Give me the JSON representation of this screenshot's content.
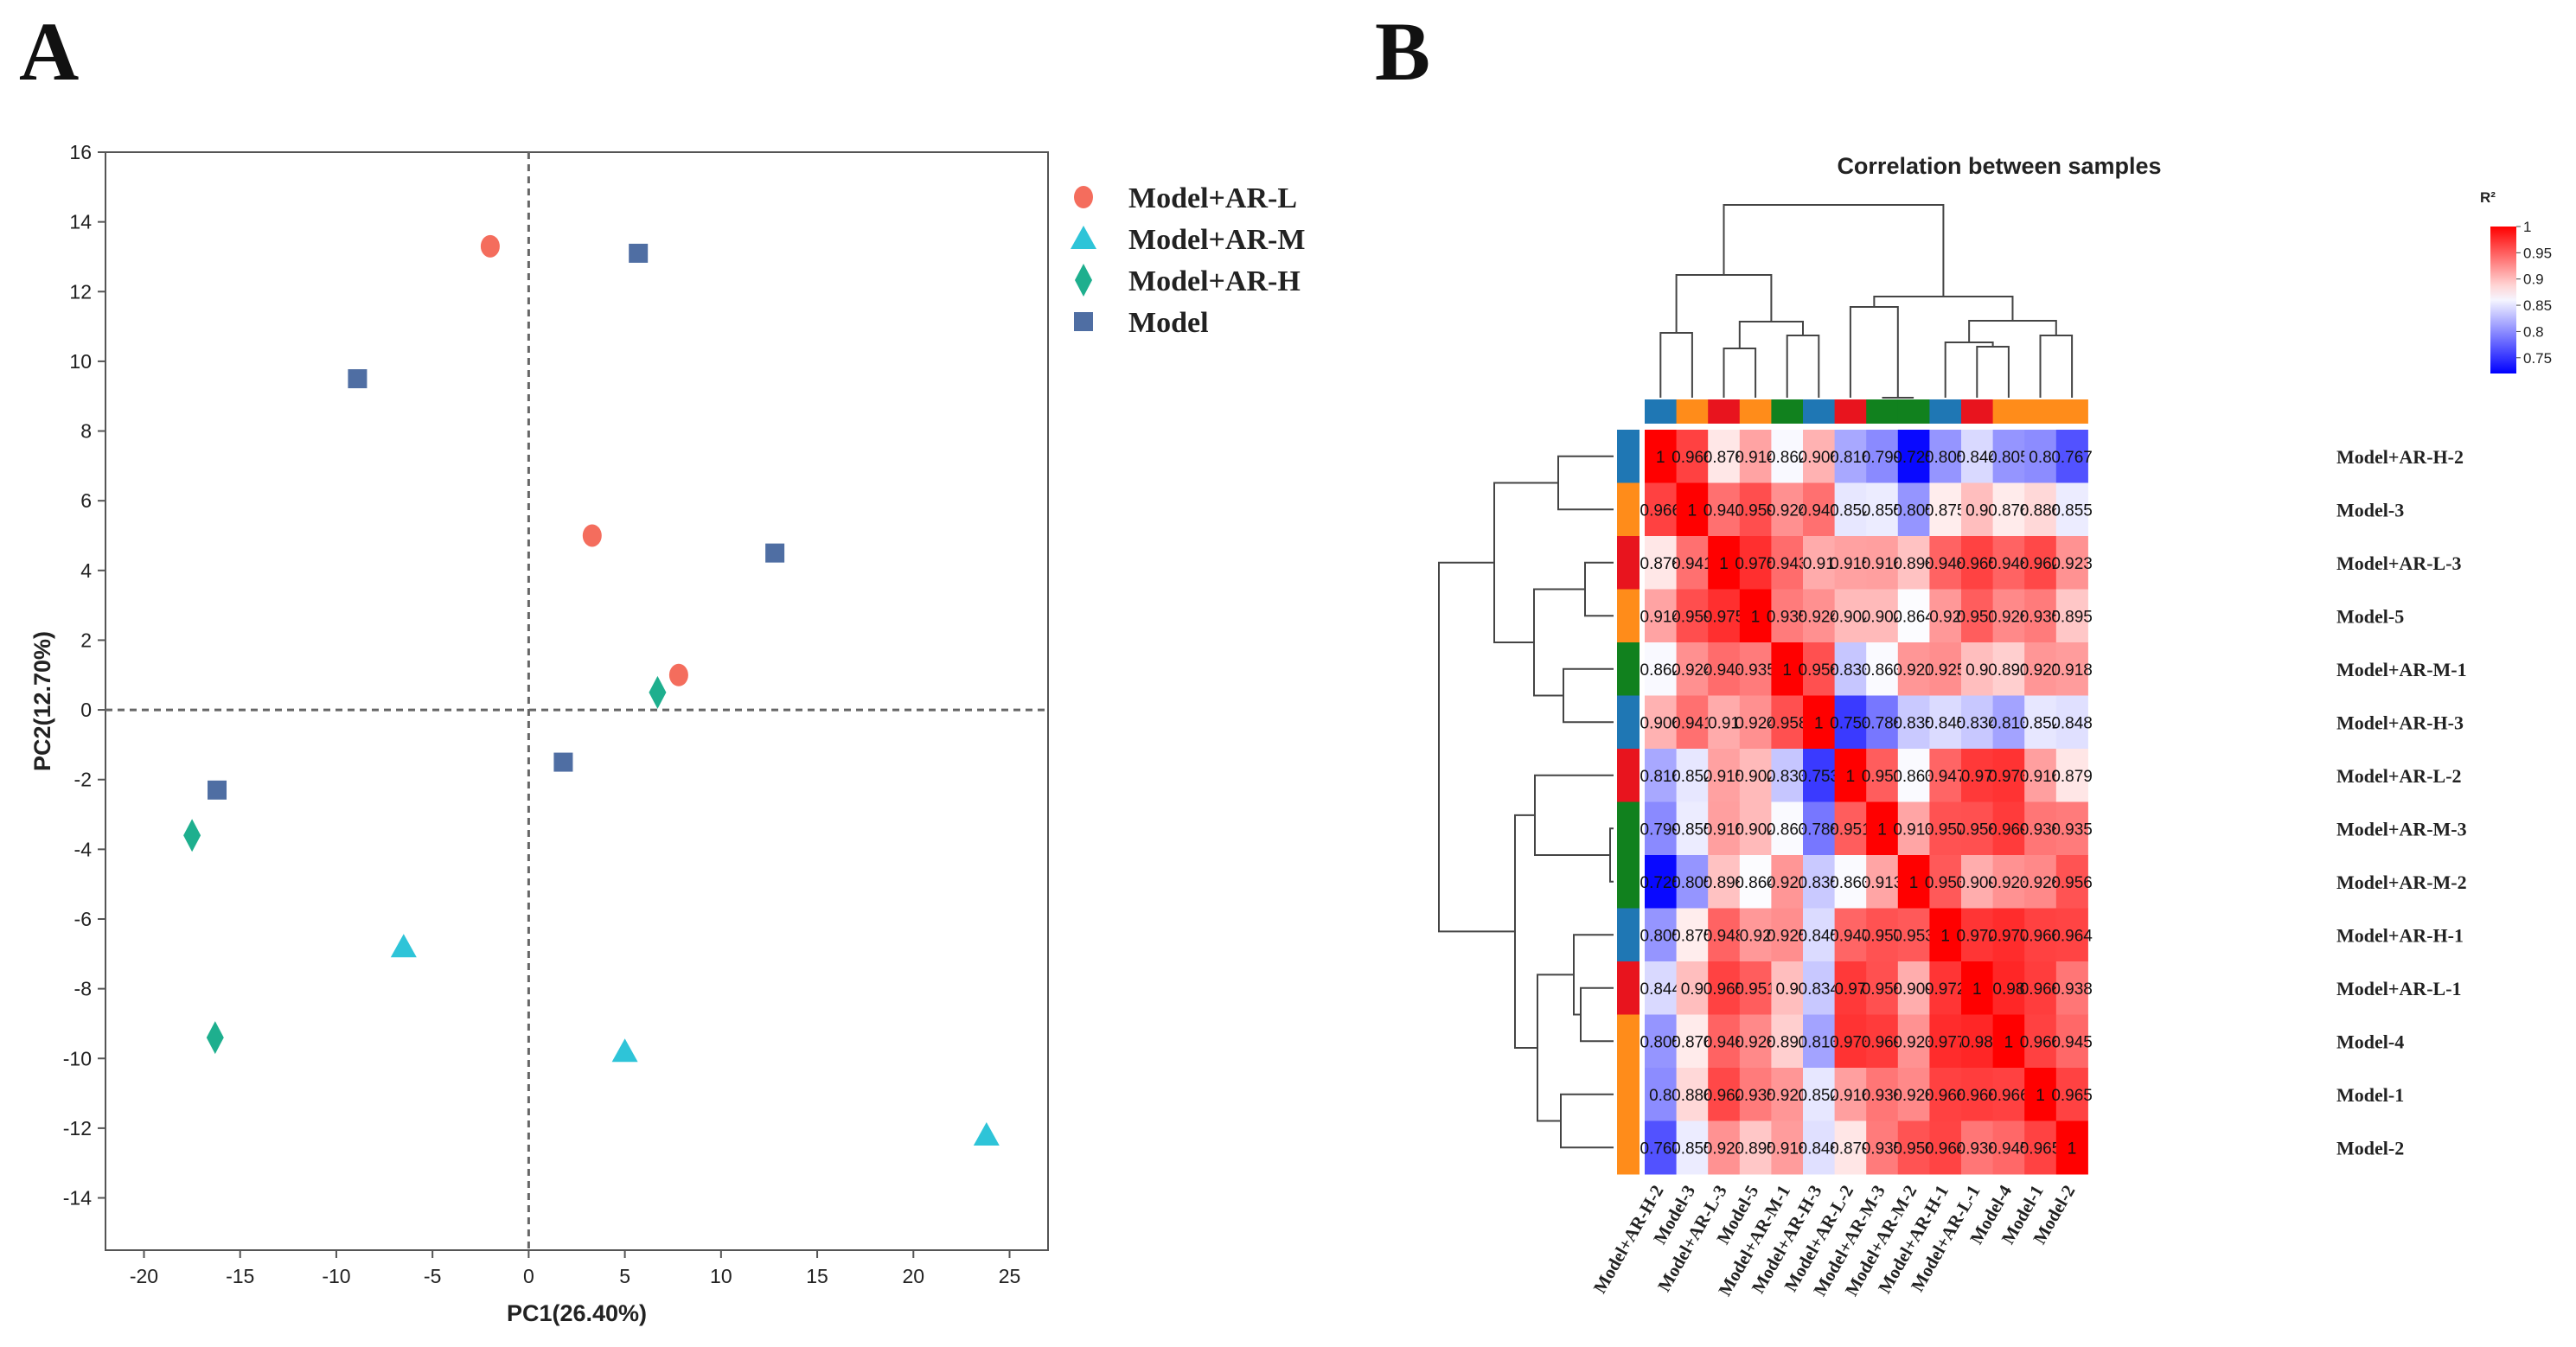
{
  "panels": {
    "a_label": "A",
    "b_label": "B"
  },
  "colors": {
    "Model+AR-L": "#f46d5d",
    "Model+AR-M": "#2ec4d8",
    "Model+AR-H": "#1eaf8e",
    "Model": "#4f6ea3",
    "group_bar": {
      "Model+AR-H": "#1f77b4",
      "Model": "#ff8c1a",
      "Model+AR-L": "#e8141e",
      "Model+AR-M": "#11811e"
    },
    "scale_low": "#0000ff",
    "scale_mid": "#ffffff",
    "scale_high": "#ff0000"
  },
  "chart_data": [
    {
      "type": "scatter",
      "title": "",
      "xlabel": "PC1(26.40%)",
      "ylabel": "PC2(12.70%)",
      "xlim": [
        -22,
        27
      ],
      "ylim": [
        -15.5,
        16
      ],
      "xticks": [
        "-20",
        "-15",
        "-10",
        "-5",
        "0",
        "5",
        "10",
        "15",
        "20",
        "25"
      ],
      "yticks": [
        "16",
        "14",
        "12",
        "10",
        "8",
        "6",
        "4",
        "2",
        "0",
        "-2",
        "-4",
        "-6",
        "-8",
        "-10",
        "-12",
        "-14"
      ],
      "reference_lines": {
        "x": 0,
        "y": 0,
        "style": "dashed"
      },
      "legend_position": "top-right",
      "series": [
        {
          "name": "Model+AR-L",
          "marker": "circle",
          "points": [
            [
              -2.0,
              13.3
            ],
            [
              3.3,
              5.0
            ],
            [
              7.8,
              1.0
            ]
          ]
        },
        {
          "name": "Model+AR-M",
          "marker": "triangle",
          "points": [
            [
              -6.5,
              -6.8
            ],
            [
              5.0,
              -9.8
            ],
            [
              23.8,
              -12.2
            ]
          ]
        },
        {
          "name": "Model+AR-H",
          "marker": "diamond",
          "points": [
            [
              6.7,
              0.5
            ],
            [
              -17.5,
              -3.6
            ],
            [
              -16.3,
              -9.4
            ]
          ]
        },
        {
          "name": "Model",
          "marker": "square",
          "points": [
            [
              5.7,
              13.1
            ],
            [
              -8.9,
              9.5
            ],
            [
              12.8,
              4.5
            ],
            [
              1.8,
              -1.5
            ],
            [
              -16.2,
              -2.3
            ]
          ]
        }
      ]
    },
    {
      "type": "heatmap",
      "title": "Correlation between samples",
      "colorbar_title": "R²",
      "colorbar_ticks": [
        "1",
        "0.95",
        "0.9",
        "0.85",
        "0.8",
        "0.75"
      ],
      "scale_range": [
        0.72,
        1.0
      ],
      "labels": [
        "Model+AR-H-2",
        "Model-3",
        "Model+AR-L-3",
        "Model-5",
        "Model+AR-M-1",
        "Model+AR-H-3",
        "Model+AR-L-2",
        "Model+AR-M-3",
        "Model+AR-M-2",
        "Model+AR-H-1",
        "Model+AR-L-1",
        "Model-4",
        "Model-1",
        "Model-2"
      ],
      "groups": [
        "Model+AR-H",
        "Model",
        "Model+AR-L",
        "Model",
        "Model+AR-M",
        "Model+AR-H",
        "Model+AR-L",
        "Model+AR-M",
        "Model+AR-M",
        "Model+AR-H",
        "Model+AR-L",
        "Model",
        "Model",
        "Model"
      ],
      "matrix": [
        [
          1,
          0.966,
          0.878,
          0.914,
          0.862,
          0.906,
          0.816,
          0.799,
          0.725,
          0.805,
          0.844,
          0.805,
          0.8,
          0.767
        ],
        [
          0.966,
          1,
          0.941,
          0.959,
          0.924,
          0.941,
          0.852,
          0.855,
          0.805,
          0.875,
          0.9,
          0.876,
          0.886,
          0.855
        ],
        [
          0.878,
          0.941,
          1,
          0.975,
          0.943,
          0.91,
          0.915,
          0.916,
          0.898,
          0.948,
          0.965,
          0.948,
          0.962,
          0.923
        ],
        [
          0.914,
          0.959,
          0.975,
          1,
          0.935,
          0.924,
          0.902,
          0.902,
          0.864,
          0.92,
          0.951,
          0.928,
          0.935,
          0.895
        ],
        [
          0.862,
          0.924,
          0.943,
          0.935,
          1,
          0.958,
          0.833,
          0.863,
          0.921,
          0.925,
          0.9,
          0.891,
          0.921,
          0.918
        ],
        [
          0.906,
          0.941,
          0.91,
          0.924,
          0.958,
          1,
          0.753,
          0.788,
          0.835,
          0.845,
          0.834,
          0.813,
          0.852,
          0.848
        ],
        [
          0.816,
          0.852,
          0.915,
          0.902,
          0.833,
          0.753,
          1,
          0.951,
          0.863,
          0.947,
          0.97,
          0.973,
          0.916,
          0.879
        ],
        [
          0.799,
          0.855,
          0.916,
          0.902,
          0.863,
          0.788,
          0.951,
          1,
          0.913,
          0.957,
          0.958,
          0.969,
          0.938,
          0.935
        ],
        [
          0.725,
          0.805,
          0.898,
          0.864,
          0.921,
          0.835,
          0.863,
          0.913,
          1,
          0.953,
          0.909,
          0.923,
          0.928,
          0.956
        ],
        [
          0.805,
          0.875,
          0.948,
          0.92,
          0.925,
          0.845,
          0.947,
          0.957,
          0.953,
          1,
          0.972,
          0.977,
          0.966,
          0.964
        ],
        [
          0.844,
          0.9,
          0.965,
          0.951,
          0.9,
          0.834,
          0.97,
          0.958,
          0.909,
          0.972,
          1,
          0.98,
          0.968,
          0.938
        ],
        [
          0.805,
          0.876,
          0.948,
          0.928,
          0.891,
          0.813,
          0.973,
          0.969,
          0.923,
          0.977,
          0.98,
          1,
          0.966,
          0.945
        ],
        [
          0.8,
          0.886,
          0.962,
          0.935,
          0.921,
          0.852,
          0.916,
          0.938,
          0.928,
          0.966,
          0.968,
          0.966,
          1,
          0.965
        ],
        [
          0.767,
          0.855,
          0.923,
          0.895,
          0.918,
          0.848,
          0.879,
          0.935,
          0.956,
          0.964,
          0.938,
          0.945,
          0.965,
          1
        ]
      ],
      "dendrogram": "hierarchical clustering shown on top and left"
    }
  ]
}
